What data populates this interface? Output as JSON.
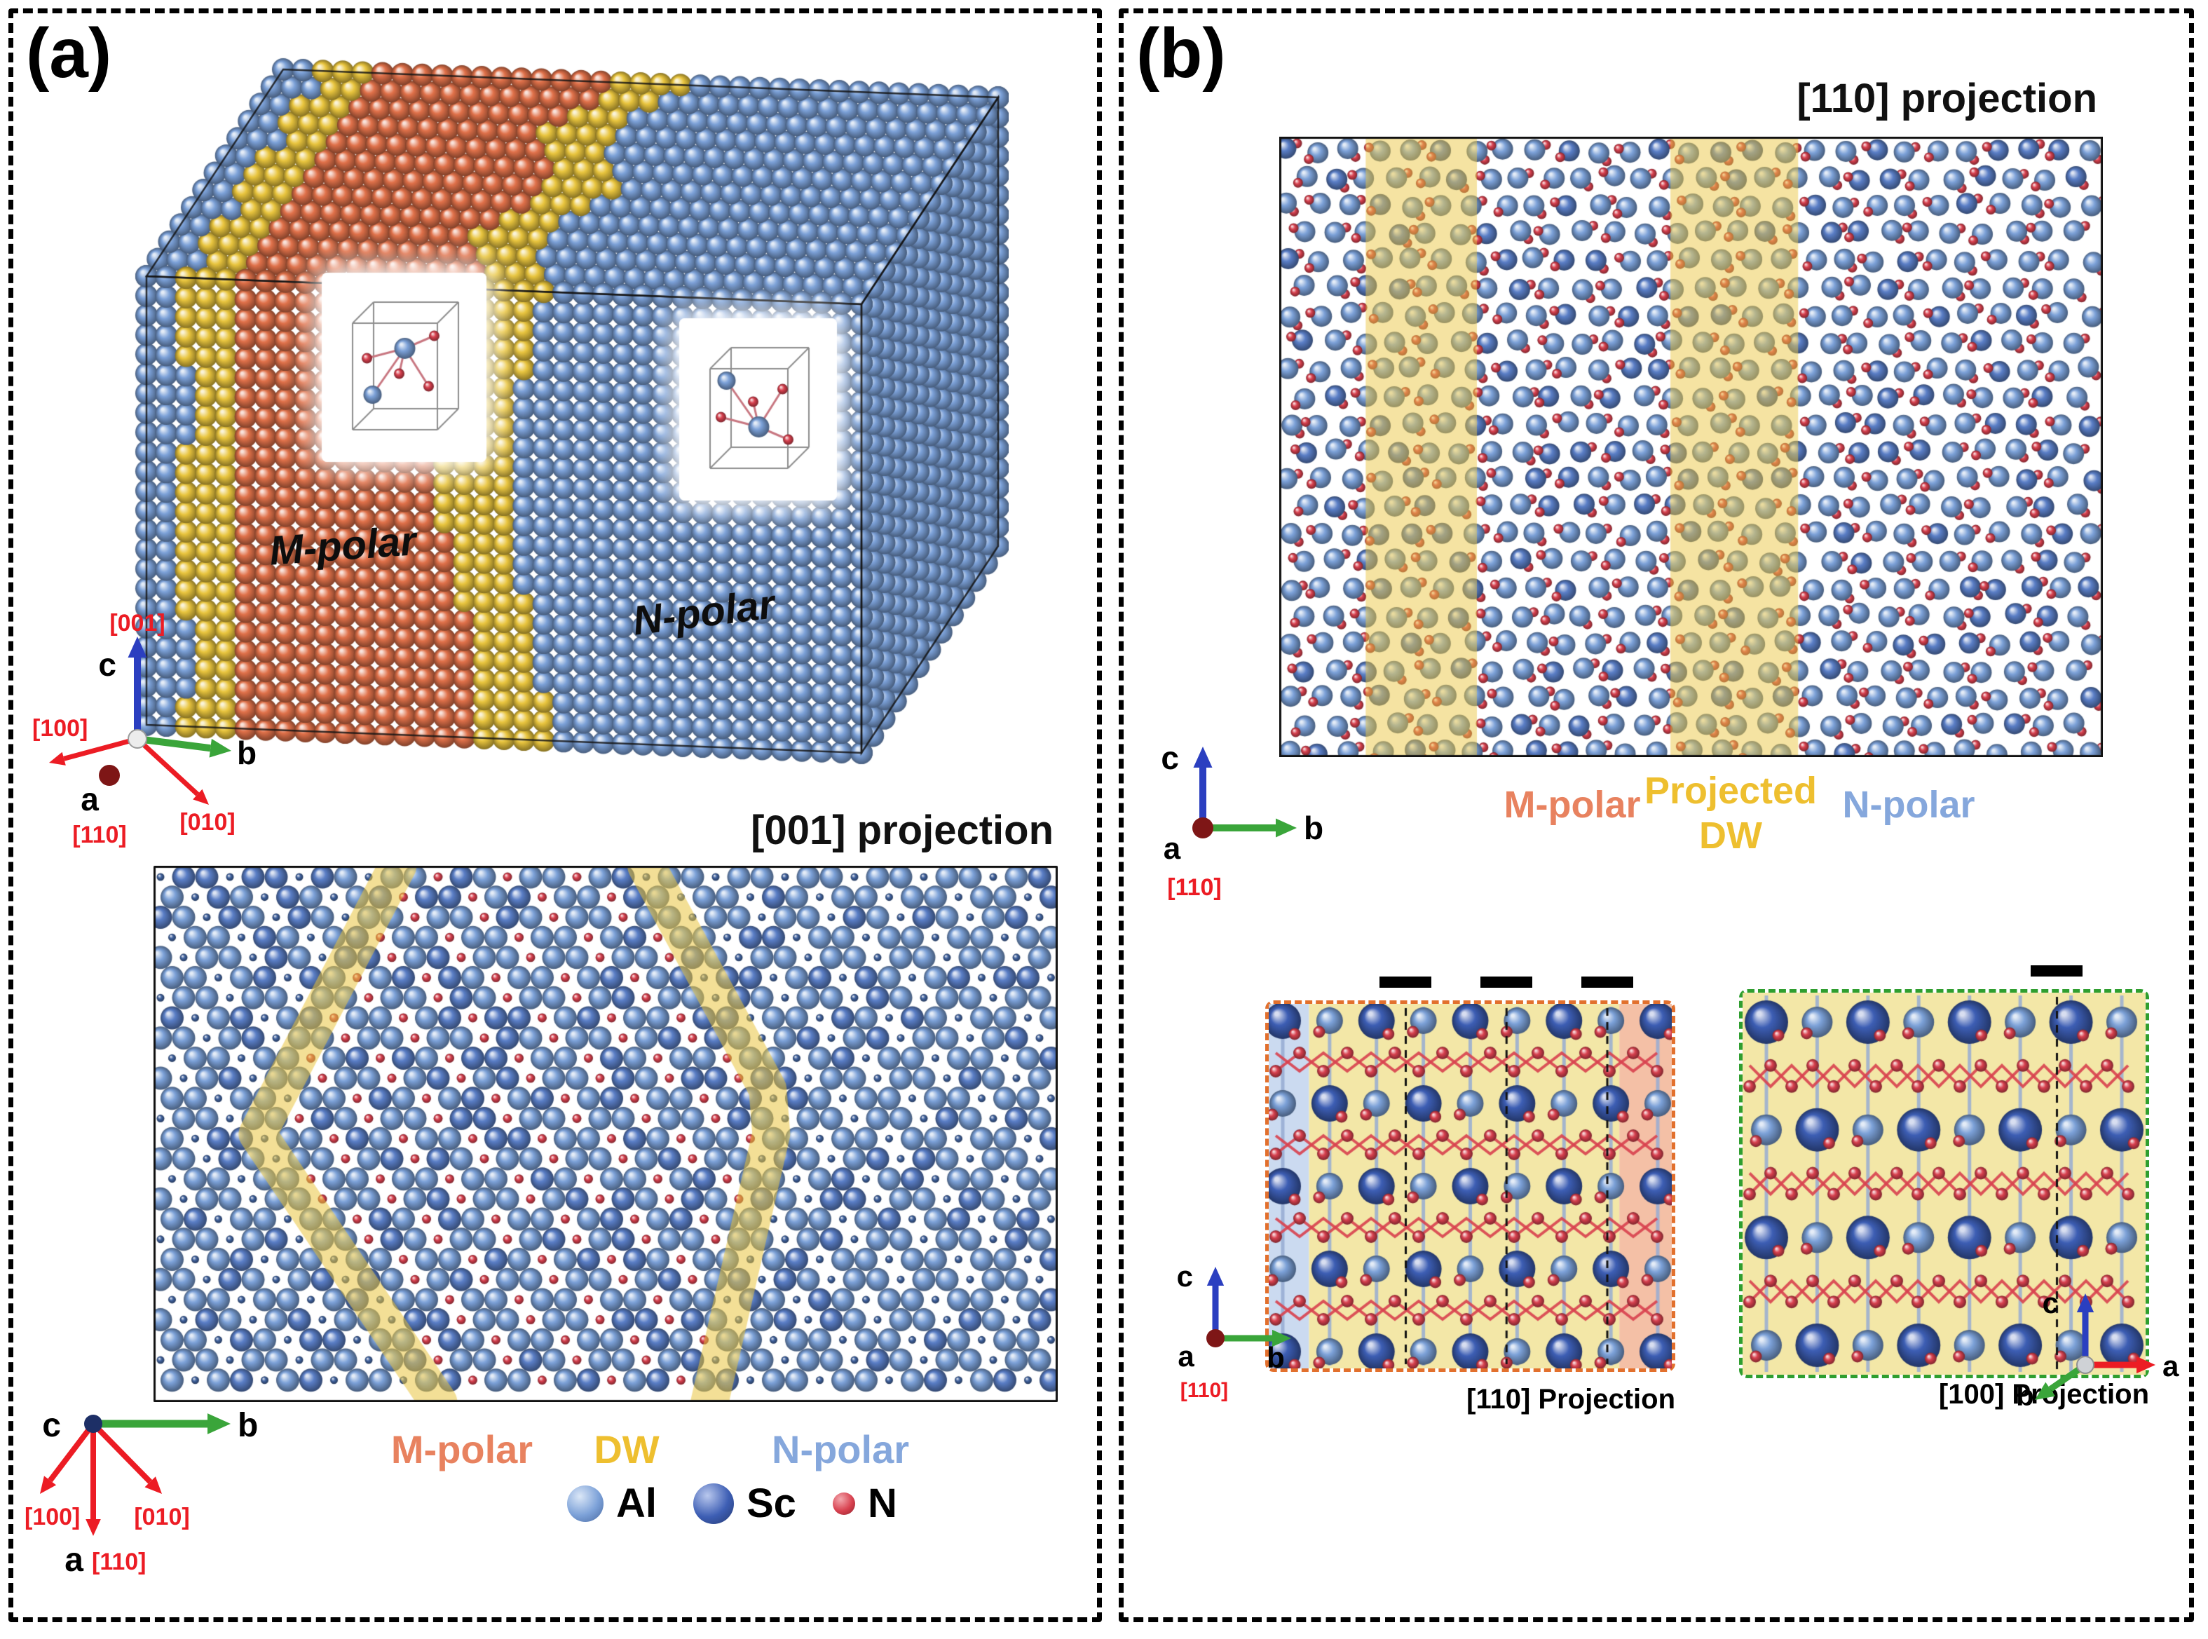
{
  "colors": {
    "al": "#7ca1d8",
    "al_dark": "#5a7ec6",
    "sc": "#3d5eb4",
    "n": "#d8414f",
    "m_polar": "#e0714a",
    "dw": "#e9c53e",
    "m_polar_label": "#e8825f",
    "dw_label": "#eebf2f",
    "n_polar_label": "#85a7dc",
    "axis_red": "#ec1c24",
    "axis_green": "#3aa53a",
    "axis_blue": "#2b3fc0"
  },
  "panel_a": {
    "label": "(a)",
    "axes_3d": {
      "c": "c",
      "c_dir": "[001]",
      "b": "b",
      "b_dir": "[010]",
      "a": "a",
      "a_dir": "[110]",
      "a_left": "[100]"
    },
    "block_labels": {
      "m_polar": "M-polar",
      "n_polar": "N-polar"
    },
    "projection_title": "[001] projection",
    "region_labels": {
      "m_polar": "M-polar",
      "dw": "DW",
      "n_polar": "N-polar"
    },
    "legend": {
      "al": "Al",
      "sc": "Sc",
      "n": "N"
    },
    "axes_2d": {
      "c": "c",
      "b": "b",
      "dir_100": "[100]",
      "dir_010": "[010]",
      "a": "a",
      "a_dir": "[110]"
    }
  },
  "panel_b": {
    "label": "(b)",
    "projection_title": "[110] projection",
    "axes_2d": {
      "c": "c",
      "b": "b",
      "a": "a",
      "a_dir": "[110]"
    },
    "region_labels": {
      "m_polar": "M-polar",
      "dw_line1": "Projected",
      "dw_line2": "DW",
      "n_polar": "N-polar"
    },
    "sub_left": {
      "title": "[110] Projection",
      "axes": {
        "c": "c",
        "b": "b",
        "a": "a",
        "a_dir": "[110]"
      }
    },
    "sub_right": {
      "title": "[100] Projection",
      "axes": {
        "c": "c",
        "a": "a",
        "b": "b"
      }
    }
  }
}
